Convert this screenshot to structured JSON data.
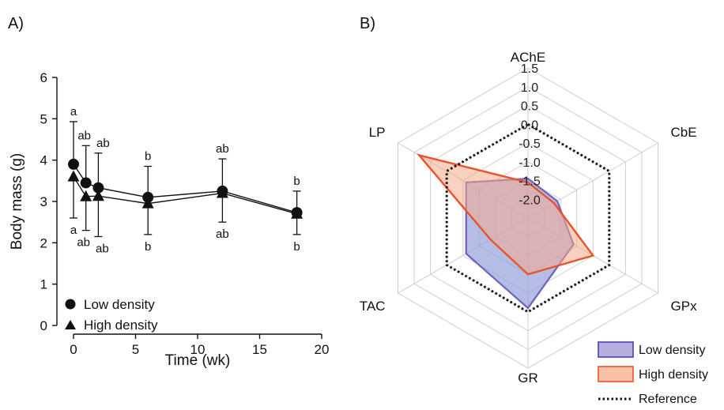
{
  "panels": {
    "a_label": "A)",
    "b_label": "B)"
  },
  "chart_data": [
    {
      "type": "scatter",
      "panel": "A",
      "xlabel": "Time (wk)",
      "ylabel": "Body mass (g)",
      "xlim": [
        0,
        20
      ],
      "ylim": [
        0,
        6
      ],
      "xticks": [
        "0",
        "5",
        "10",
        "15",
        "20"
      ],
      "yticks": [
        "0",
        "1",
        "2",
        "3",
        "4",
        "5",
        "6"
      ],
      "legend_position": "bottom-left",
      "series": [
        {
          "name": "Low density",
          "marker": "circle",
          "x": [
            0,
            1,
            2,
            6,
            12,
            18
          ],
          "y": [
            3.9,
            3.45,
            3.33,
            3.1,
            3.25,
            2.73
          ],
          "err_high": [
            4.93,
            4.35,
            null,
            3.85,
            4.03,
            3.25
          ],
          "letters": [
            "a",
            "ab",
            "ab",
            "b",
            "ab",
            "b"
          ]
        },
        {
          "name": "High density",
          "marker": "triangle",
          "x": [
            0,
            1,
            2,
            6,
            12,
            18
          ],
          "y": [
            3.6,
            3.12,
            3.13,
            2.95,
            3.2,
            2.7
          ],
          "err_high": [
            null,
            null,
            4.17,
            null,
            null,
            null
          ],
          "err_low": [
            2.6,
            2.3,
            2.15,
            2.2,
            2.5,
            2.2
          ],
          "letters": [
            "a",
            "ab",
            "ab",
            "b",
            "ab",
            "b"
          ]
        }
      ]
    },
    {
      "type": "radar",
      "panel": "B",
      "axes": [
        "AChE",
        "CbE",
        "GPx",
        "GR",
        "TAC",
        "LP"
      ],
      "rlim": [
        -2.5,
        1.5
      ],
      "rticks": [
        "1.5",
        "1.0",
        "0.5",
        "0.0",
        "-0.5",
        "-1.0",
        "-1.5",
        "-2.0"
      ],
      "legend_position": "bottom-right",
      "series": [
        {
          "name": "Low density",
          "values": [
            -1.45,
            -1.6,
            -1.1,
            -0.1,
            -0.6,
            -0.6
          ],
          "stroke": "#7b63b8",
          "fill": "#9c93d3"
        },
        {
          "name": "High density",
          "values": [
            -1.55,
            -1.7,
            -0.5,
            -1.0,
            -1.35,
            0.85
          ],
          "stroke": "#e8542a",
          "fill": "#f5a98a"
        },
        {
          "name": "Reference",
          "values": [
            0,
            0,
            0,
            0,
            0,
            0
          ],
          "stroke": "#111111",
          "dash": "dotted"
        }
      ],
      "combined_outline": "#2d5fb8"
    }
  ]
}
